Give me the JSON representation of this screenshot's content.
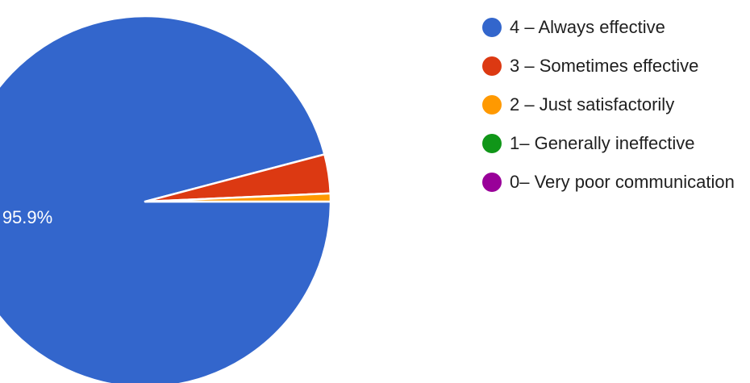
{
  "chart_data": {
    "type": "pie",
    "title": "",
    "start_angle_deg": 90,
    "direction": "clockwise",
    "slices": [
      {
        "label": "4 – Always effective",
        "value": 95.9,
        "color": "#3366cc",
        "data_label": "95.9%"
      },
      {
        "label": "3 – Sometimes effective",
        "value": 3.4,
        "color": "#dc3912",
        "data_label": ""
      },
      {
        "label": "2 – Just satisfactorily",
        "value": 0.7,
        "color": "#ff9900",
        "data_label": ""
      },
      {
        "label": "1– Generally ineffective",
        "value": 0,
        "color": "#109618",
        "data_label": ""
      },
      {
        "label": "0– Very poor communication",
        "value": 0,
        "color": "#990099",
        "data_label": ""
      }
    ],
    "legend_position": "right"
  }
}
